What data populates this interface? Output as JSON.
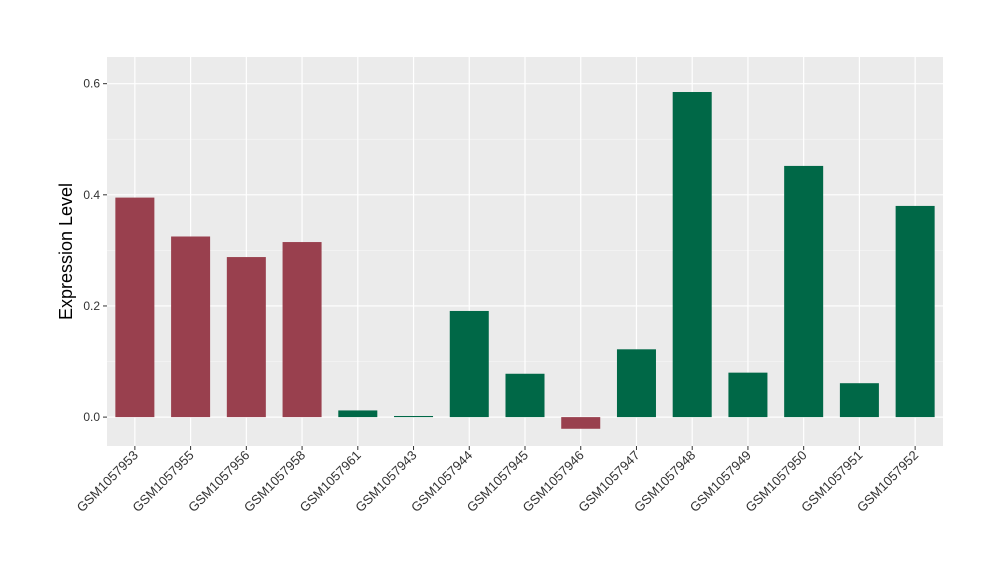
{
  "chart_data": {
    "type": "bar",
    "ylabel": "Expression Level",
    "xlabel": "",
    "title": "",
    "ylim": [
      -0.052,
      0.648
    ],
    "yticks": [
      0.0,
      0.2,
      0.4,
      0.6
    ],
    "ytick_labels": [
      "0.0",
      "0.2",
      "0.4",
      "0.6"
    ],
    "grid": true,
    "legend": "none",
    "categories": [
      "GSM1057953",
      "GSM1057955",
      "GSM1057956",
      "GSM1057958",
      "GSM1057961",
      "GSM1057943",
      "GSM1057944",
      "GSM1057945",
      "GSM1057946",
      "GSM1057947",
      "GSM1057948",
      "GSM1057949",
      "GSM1057950",
      "GSM1057951",
      "GSM1057952"
    ],
    "values": [
      0.395,
      0.325,
      0.288,
      0.315,
      0.012,
      0.002,
      0.191,
      0.078,
      -0.021,
      0.122,
      0.585,
      0.08,
      0.452,
      0.061,
      0.38
    ],
    "groups": [
      "a",
      "a",
      "a",
      "a",
      "b",
      "b",
      "b",
      "b",
      "a",
      "b",
      "b",
      "b",
      "b",
      "b",
      "b"
    ],
    "colors": {
      "a": "#99404e",
      "b": "#006847",
      "panel": "#ebebeb",
      "grid_major": "#ffffff",
      "grid_minor": "#f5f5f5"
    }
  }
}
